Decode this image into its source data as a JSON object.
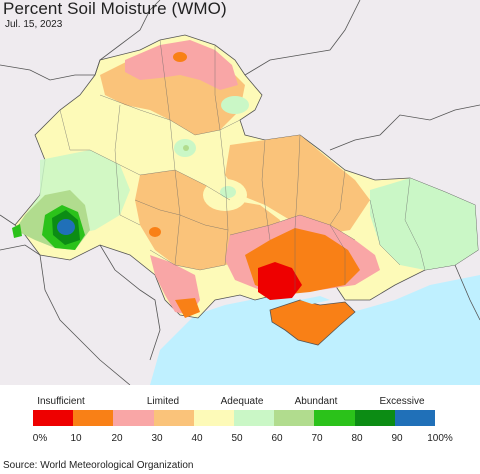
{
  "header": {
    "title": "Percent Soil Moisture (WMO)",
    "date": "Jul. 15, 2023"
  },
  "legend": {
    "categories": [
      "Insufficient",
      "Limited",
      "Adequate",
      "Abundant",
      "Excessive"
    ],
    "ticks": [
      "0%",
      "10",
      "20",
      "30",
      "40",
      "50",
      "60",
      "70",
      "80",
      "90",
      "100%"
    ],
    "colors": [
      "#ee0000",
      "#f98016",
      "#f9a6a6",
      "#fac37a",
      "#fdfab8",
      "#caf7c6",
      "#b1dc8e",
      "#2bc21a",
      "#0c8c14",
      "#2070b8"
    ]
  },
  "map": {
    "background_color": "#efebef",
    "sea_color": "#bff0ff",
    "sea_names": []
  },
  "footer": {
    "source": "Source: World Meteorological Organization"
  }
}
